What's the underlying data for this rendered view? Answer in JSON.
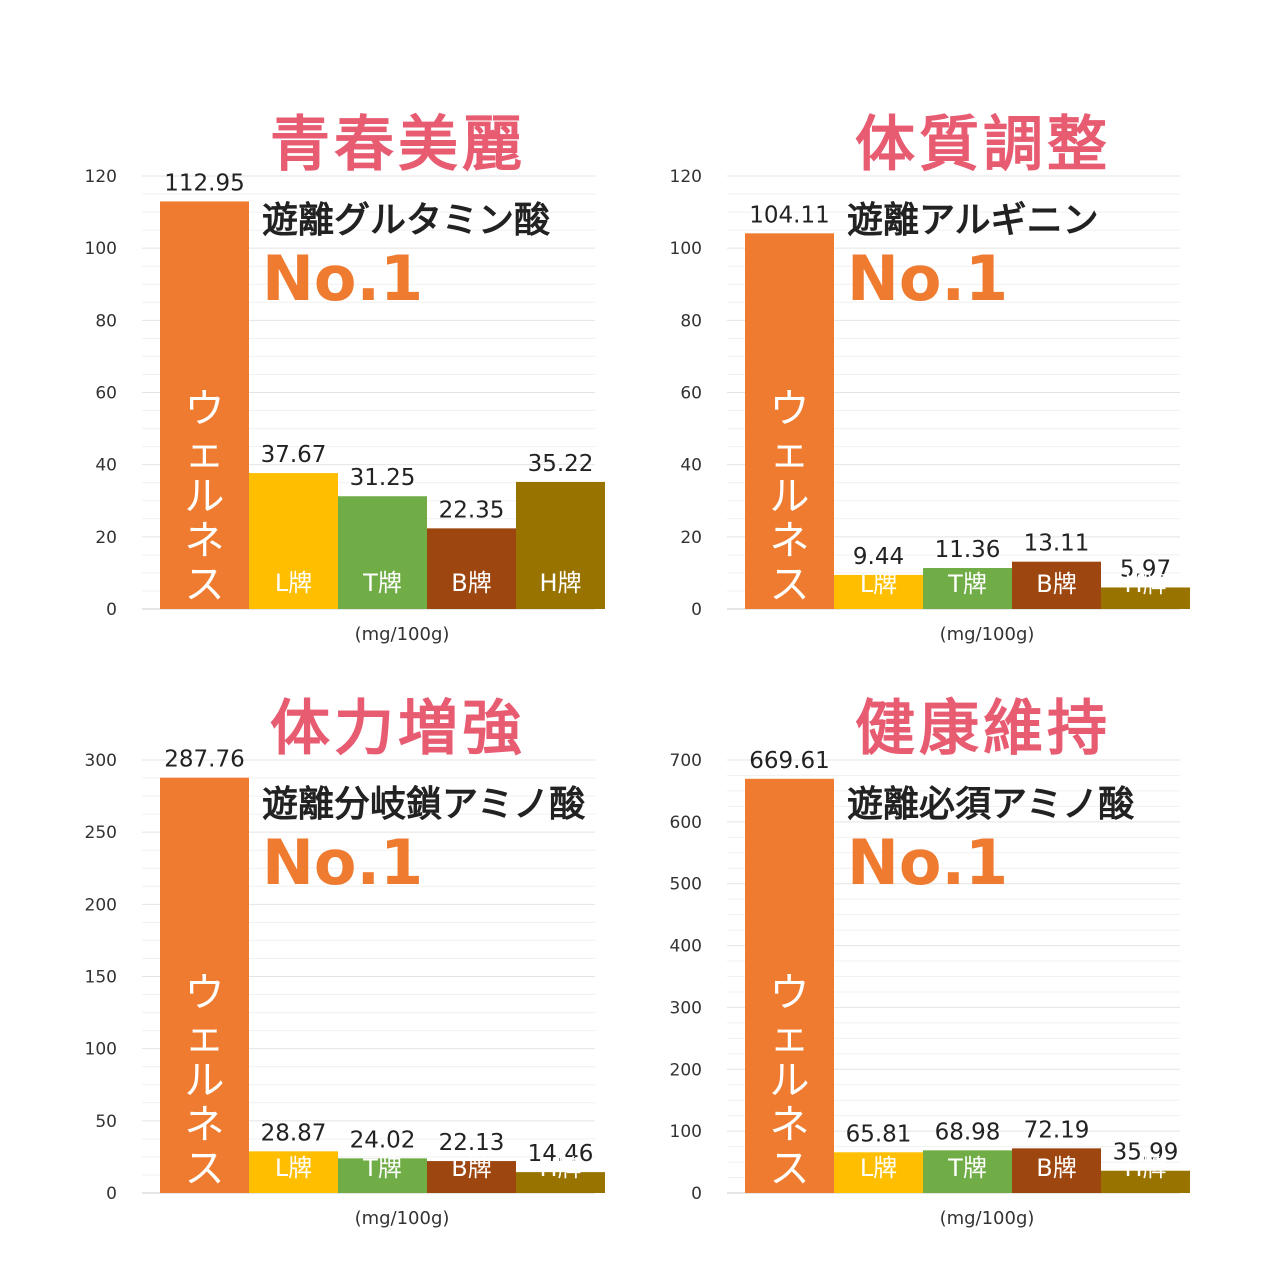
{
  "unit_label": "(mg/100g)",
  "rank_label": "No.1",
  "colors": [
    "#ee7b30",
    "#ffbf00",
    "#70ad47",
    "#9e4610",
    "#997300"
  ],
  "chart_data": [
    {
      "type": "bar",
      "title": "青春美麗",
      "subtitle": "遊離グルタミン酸",
      "categories": [
        "ウェルネス",
        "L牌",
        "T牌",
        "B牌",
        "H牌"
      ],
      "values": [
        112.95,
        37.67,
        31.25,
        22.35,
        35.22
      ],
      "value_labels": [
        "112.95",
        "37.67",
        "31.25",
        "22.35",
        "35.22"
      ],
      "ylim": [
        0,
        120
      ],
      "yticks": [
        "0",
        "20",
        "40",
        "60",
        "80",
        "100",
        "120"
      ],
      "xlabel": "(mg/100g)"
    },
    {
      "type": "bar",
      "title": "体質調整",
      "subtitle": "遊離アルギニン",
      "categories": [
        "ウェルネス",
        "L牌",
        "T牌",
        "B牌",
        "H牌"
      ],
      "values": [
        104.11,
        9.44,
        11.36,
        13.11,
        5.97
      ],
      "value_labels": [
        "104.11",
        "9.44",
        "11.36",
        "13.11",
        "5.97"
      ],
      "ylim": [
        0,
        120
      ],
      "yticks": [
        "0",
        "20",
        "40",
        "60",
        "80",
        "100",
        "120"
      ],
      "xlabel": "(mg/100g)"
    },
    {
      "type": "bar",
      "title": "体力増強",
      "subtitle": "遊離分岐鎖アミノ酸",
      "categories": [
        "ウェルネス",
        "L牌",
        "T牌",
        "B牌",
        "H牌"
      ],
      "values": [
        287.76,
        28.87,
        24.02,
        22.13,
        14.46
      ],
      "value_labels": [
        "287.76",
        "28.87",
        "24.02",
        "22.13",
        "14.46"
      ],
      "ylim": [
        0,
        300
      ],
      "yticks": [
        "0",
        "50",
        "100",
        "150",
        "200",
        "250",
        "300"
      ],
      "xlabel": "(mg/100g)"
    },
    {
      "type": "bar",
      "title": "健康維持",
      "subtitle": "遊離必須アミノ酸",
      "categories": [
        "ウェルネス",
        "L牌",
        "T牌",
        "B牌",
        "H牌"
      ],
      "values": [
        669.61,
        65.81,
        68.98,
        72.19,
        35.99
      ],
      "value_labels": [
        "669.61",
        "65.81",
        "68.98",
        "72.19",
        "35.99"
      ],
      "ylim": [
        0,
        700
      ],
      "yticks": [
        "0",
        "100",
        "200",
        "300",
        "400",
        "500",
        "600",
        "700"
      ],
      "xlabel": "(mg/100g)"
    }
  ]
}
